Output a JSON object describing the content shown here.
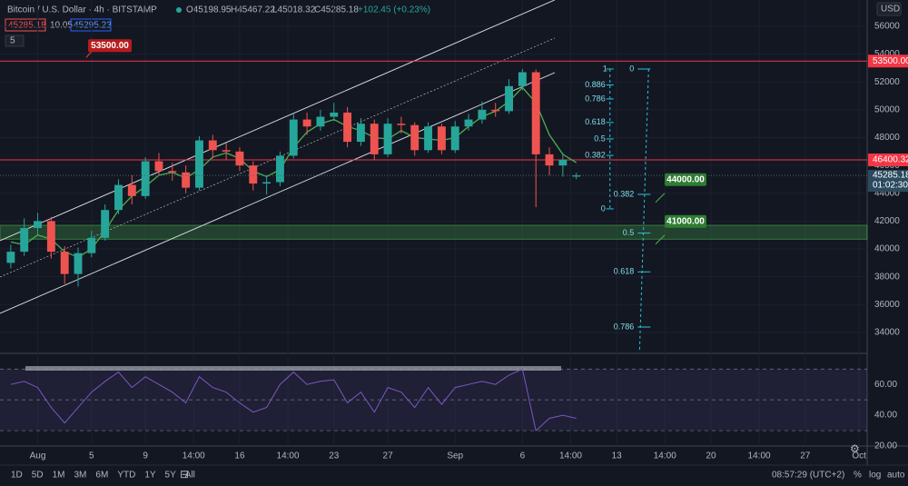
{
  "header": {
    "symbol": "Bitcoin / U.S. Dollar · 4h · BITSTAMP",
    "open": "O45198.95",
    "high": "H45467.22",
    "low": "L45018.32",
    "close": "C45285.18",
    "change": "+102.45 (+0.23%)",
    "bid": "45285.18",
    "spread": "10.05",
    "ask": "45295.23",
    "indicators": "5"
  },
  "chart_data": {
    "type": "candlestick",
    "up_color": "#26a69a",
    "down_color": "#ef5350",
    "grid": true,
    "currency": "USD",
    "x": [
      -1,
      0,
      1,
      2,
      3,
      4,
      5,
      6,
      7,
      8,
      9,
      10,
      11,
      12,
      13,
      14,
      15,
      16,
      17,
      18,
      19,
      20,
      21,
      22,
      23,
      24,
      25,
      26,
      27,
      28,
      29,
      30,
      31,
      32,
      33,
      34,
      35,
      36,
      37,
      38,
      39,
      40,
      41
    ],
    "open": [
      39000,
      39800,
      41500,
      42000,
      39800,
      38200,
      39700,
      40800,
      42800,
      44600,
      43800,
      46300,
      45600,
      45500,
      44400,
      47800,
      47100,
      47000,
      46000,
      44700,
      44800,
      46700,
      49300,
      48800,
      49500,
      49800,
      47700,
      49000,
      46800,
      49000,
      48900,
      47100,
      48800,
      47100,
      48800,
      49300,
      50000,
      49900,
      51700,
      52700,
      46800,
      46000,
      45198.95
    ],
    "high": [
      40300,
      42200,
      42600,
      42300,
      40200,
      40100,
      41300,
      43200,
      45000,
      45300,
      46600,
      46900,
      46200,
      46000,
      48100,
      48200,
      47600,
      47300,
      46300,
      45300,
      47000,
      49700,
      49800,
      50000,
      50500,
      50200,
      49400,
      49300,
      49400,
      49500,
      49100,
      49100,
      49000,
      49200,
      49700,
      50600,
      50500,
      52200,
      52930,
      52900,
      47300,
      46900,
      45467.22
    ],
    "low": [
      38600,
      39500,
      41000,
      39300,
      37500,
      37300,
      39400,
      40600,
      42500,
      43200,
      43600,
      45300,
      44900,
      44000,
      44200,
      46500,
      46400,
      45600,
      44200,
      43900,
      44500,
      46500,
      48200,
      48500,
      49200,
      47300,
      47400,
      46400,
      46600,
      48300,
      46700,
      46900,
      46800,
      46900,
      48500,
      49000,
      49500,
      49700,
      51400,
      43000,
      45300,
      45200,
      45018.32
    ],
    "close": [
      39800,
      41500,
      42000,
      39800,
      38200,
      39700,
      40800,
      42800,
      44600,
      43800,
      46300,
      45600,
      45500,
      44400,
      47800,
      47100,
      47000,
      46000,
      44700,
      44800,
      46700,
      49300,
      48800,
      49500,
      49800,
      47700,
      49000,
      46800,
      49000,
      48900,
      47100,
      48800,
      47100,
      48800,
      49300,
      50000,
      49900,
      51700,
      52700,
      46800,
      46000,
      46400,
      45285.18
    ],
    "ma": {
      "color": "#4caf50",
      "values": [
        40500,
        40300,
        41000,
        40700,
        39800,
        39400,
        40000,
        41300,
        42800,
        43800,
        44500,
        45300,
        45500,
        45100,
        45700,
        46600,
        46900,
        46500,
        45600,
        45200,
        45700,
        47300,
        48400,
        49000,
        49300,
        48800,
        48500,
        48000,
        47900,
        48500,
        48000,
        47900,
        47800,
        48000,
        48800,
        49500,
        49900,
        50600,
        51600,
        50500,
        48200,
        46800,
        46200
      ]
    },
    "xlim": [
      -1.8,
      62.6
    ],
    "xticks": [
      {
        "value": 1,
        "label": "Aug"
      },
      5,
      9,
      {
        "value": 12.58,
        "label": "14:00"
      },
      16,
      {
        "value": 19.58,
        "label": "14:00"
      },
      23,
      27,
      {
        "value": 32,
        "label": "Sep"
      },
      {
        "value": 37,
        "label": "6"
      },
      {
        "value": 40.58,
        "label": "14:00"
      },
      {
        "value": 44,
        "label": "13"
      },
      {
        "value": 47.58,
        "label": "14:00"
      },
      {
        "value": 51,
        "label": "20"
      },
      {
        "value": 54.58,
        "label": "14:00"
      },
      {
        "value": 58,
        "label": "27"
      },
      {
        "value": 62,
        "label": "Oct"
      }
    ],
    "ylim": [
      32560,
      57890
    ],
    "yticks": [
      34000,
      36000,
      38000,
      40000,
      42000,
      44000,
      46000,
      48000,
      50000,
      52000,
      54000,
      56000
    ],
    "channel": {
      "x": [
        -1.8,
        39.4
      ],
      "upper": [
        40596,
        57893
      ],
      "middle": [
        37984,
        55151
      ],
      "lower": [
        35374,
        52670
      ]
    },
    "zone": [
      40700,
      41700
    ],
    "price_lines": [
      {
        "value": 53500,
        "label": "53500.00",
        "color": "#f23645"
      },
      {
        "value": 46400.32,
        "label": "46400.32",
        "color": "#f23645"
      }
    ],
    "callouts": [
      {
        "value": 44000,
        "label": "44000.00"
      },
      {
        "value": 41000,
        "label": "41000.00"
      }
    ],
    "last_price": {
      "value": 45285.18,
      "label": "45285.18",
      "countdown": "01:02:30"
    },
    "fib_retracement": {
      "x": 43.5,
      "from": 42880,
      "to": 52930,
      "levels": [
        1,
        0.886,
        0.786,
        0.618,
        0.5,
        0.382,
        0
      ]
    },
    "fib_extension": {
      "x": 46.1,
      "from": 52930,
      "to": 29340,
      "levels": [
        0,
        0.382,
        0.5,
        0.618,
        0.786
      ]
    },
    "rsi": {
      "color": "#7e57c2",
      "ylim": [
        20,
        79
      ],
      "bands": [
        70,
        50,
        30
      ],
      "yticks": [
        {
          "value": 20,
          "label": "20.00"
        },
        {
          "value": 40,
          "label": "40.00"
        },
        {
          "value": 60,
          "label": "60.00"
        }
      ],
      "values": [
        60,
        62,
        58,
        45,
        35,
        45,
        55,
        62,
        68,
        58,
        65,
        60,
        55,
        48,
        65,
        58,
        55,
        48,
        42,
        45,
        60,
        68,
        60,
        62,
        63,
        48,
        55,
        42,
        58,
        55,
        45,
        58,
        47,
        58,
        60,
        62,
        60,
        66,
        70,
        30,
        38,
        40,
        38
      ]
    }
  },
  "toolbar": {
    "ranges": [
      "1D",
      "5D",
      "1M",
      "3M",
      "6M",
      "YTD",
      "1Y",
      "5Y",
      "All"
    ],
    "clock": "08:57:29 (UTC+2)",
    "percent": "%",
    "log": "log",
    "auto": "auto"
  }
}
